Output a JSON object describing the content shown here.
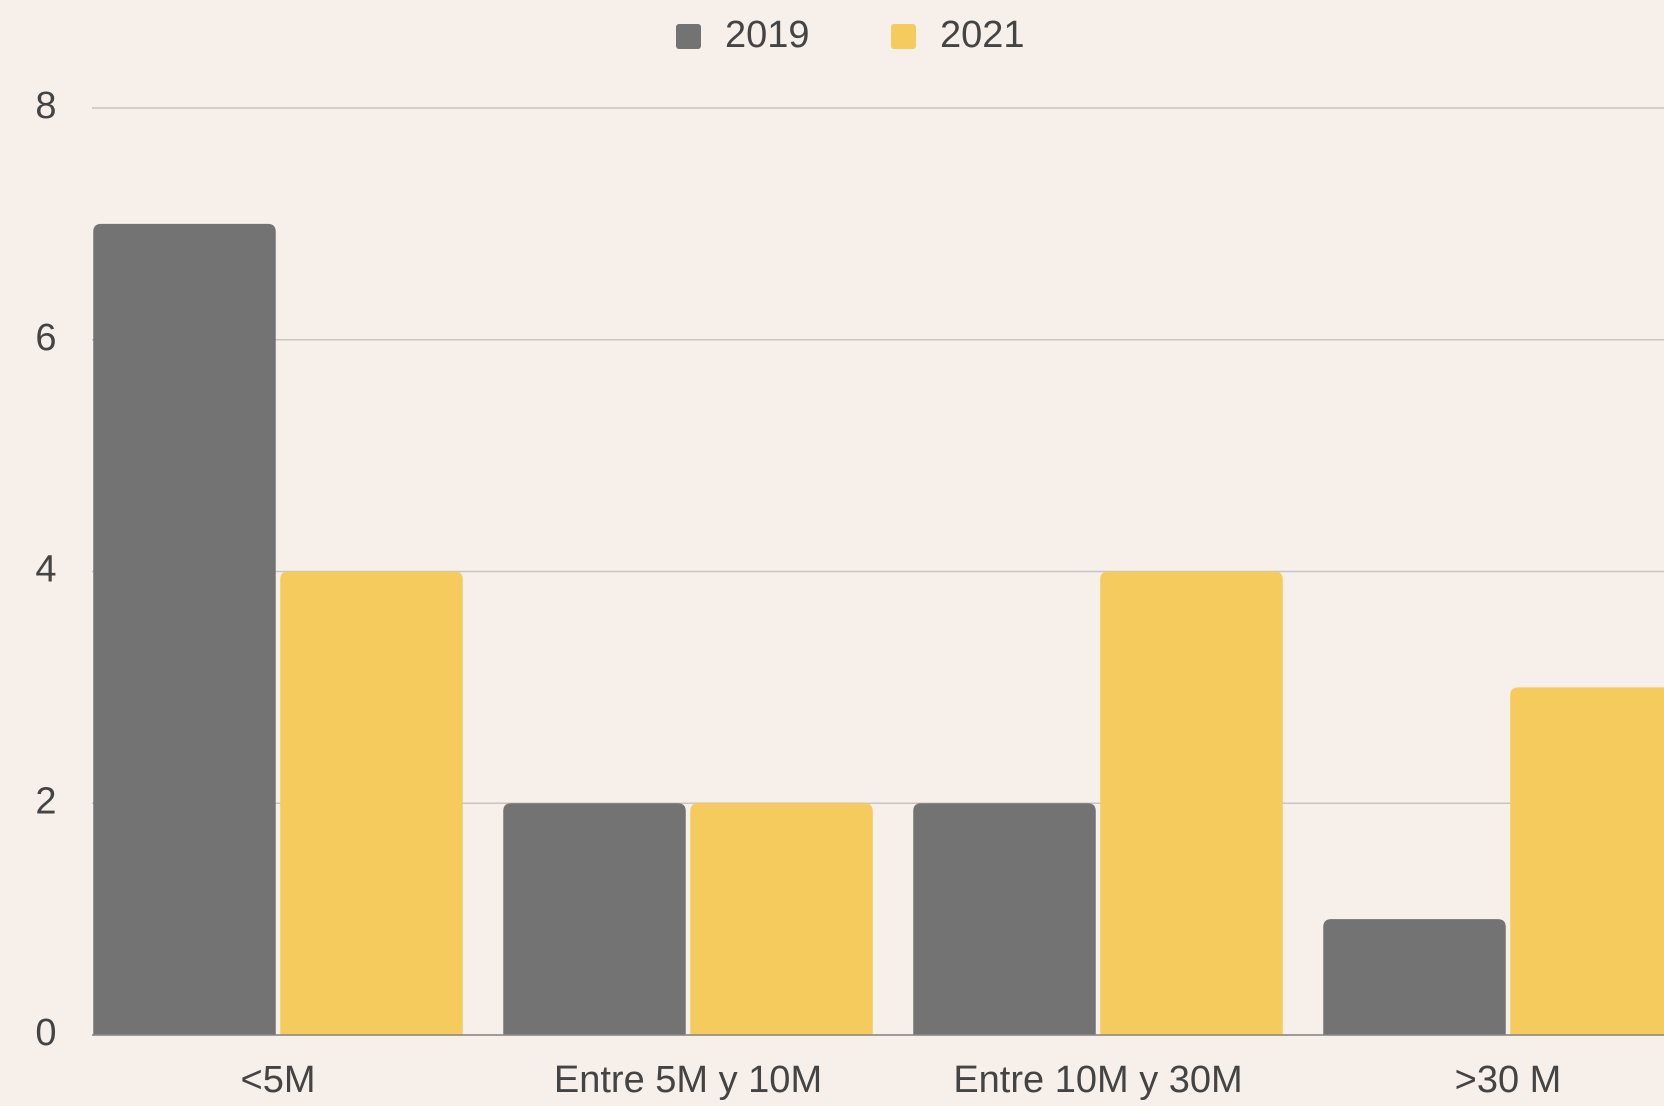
{
  "chart_data": {
    "type": "bar",
    "categories": [
      "<5M",
      "Entre 5M y 10M",
      "Entre 10M y 30M",
      ">30 M"
    ],
    "series": [
      {
        "name": "2019",
        "color": "#737373",
        "values": [
          7,
          2,
          2,
          1
        ]
      },
      {
        "name": "2021",
        "color": "#f4cb5c",
        "values": [
          4,
          2,
          4,
          3
        ]
      }
    ],
    "ylim": [
      0,
      8
    ],
    "yticks": [
      0,
      2,
      4,
      6,
      8
    ],
    "grid": true,
    "legend": "top"
  }
}
